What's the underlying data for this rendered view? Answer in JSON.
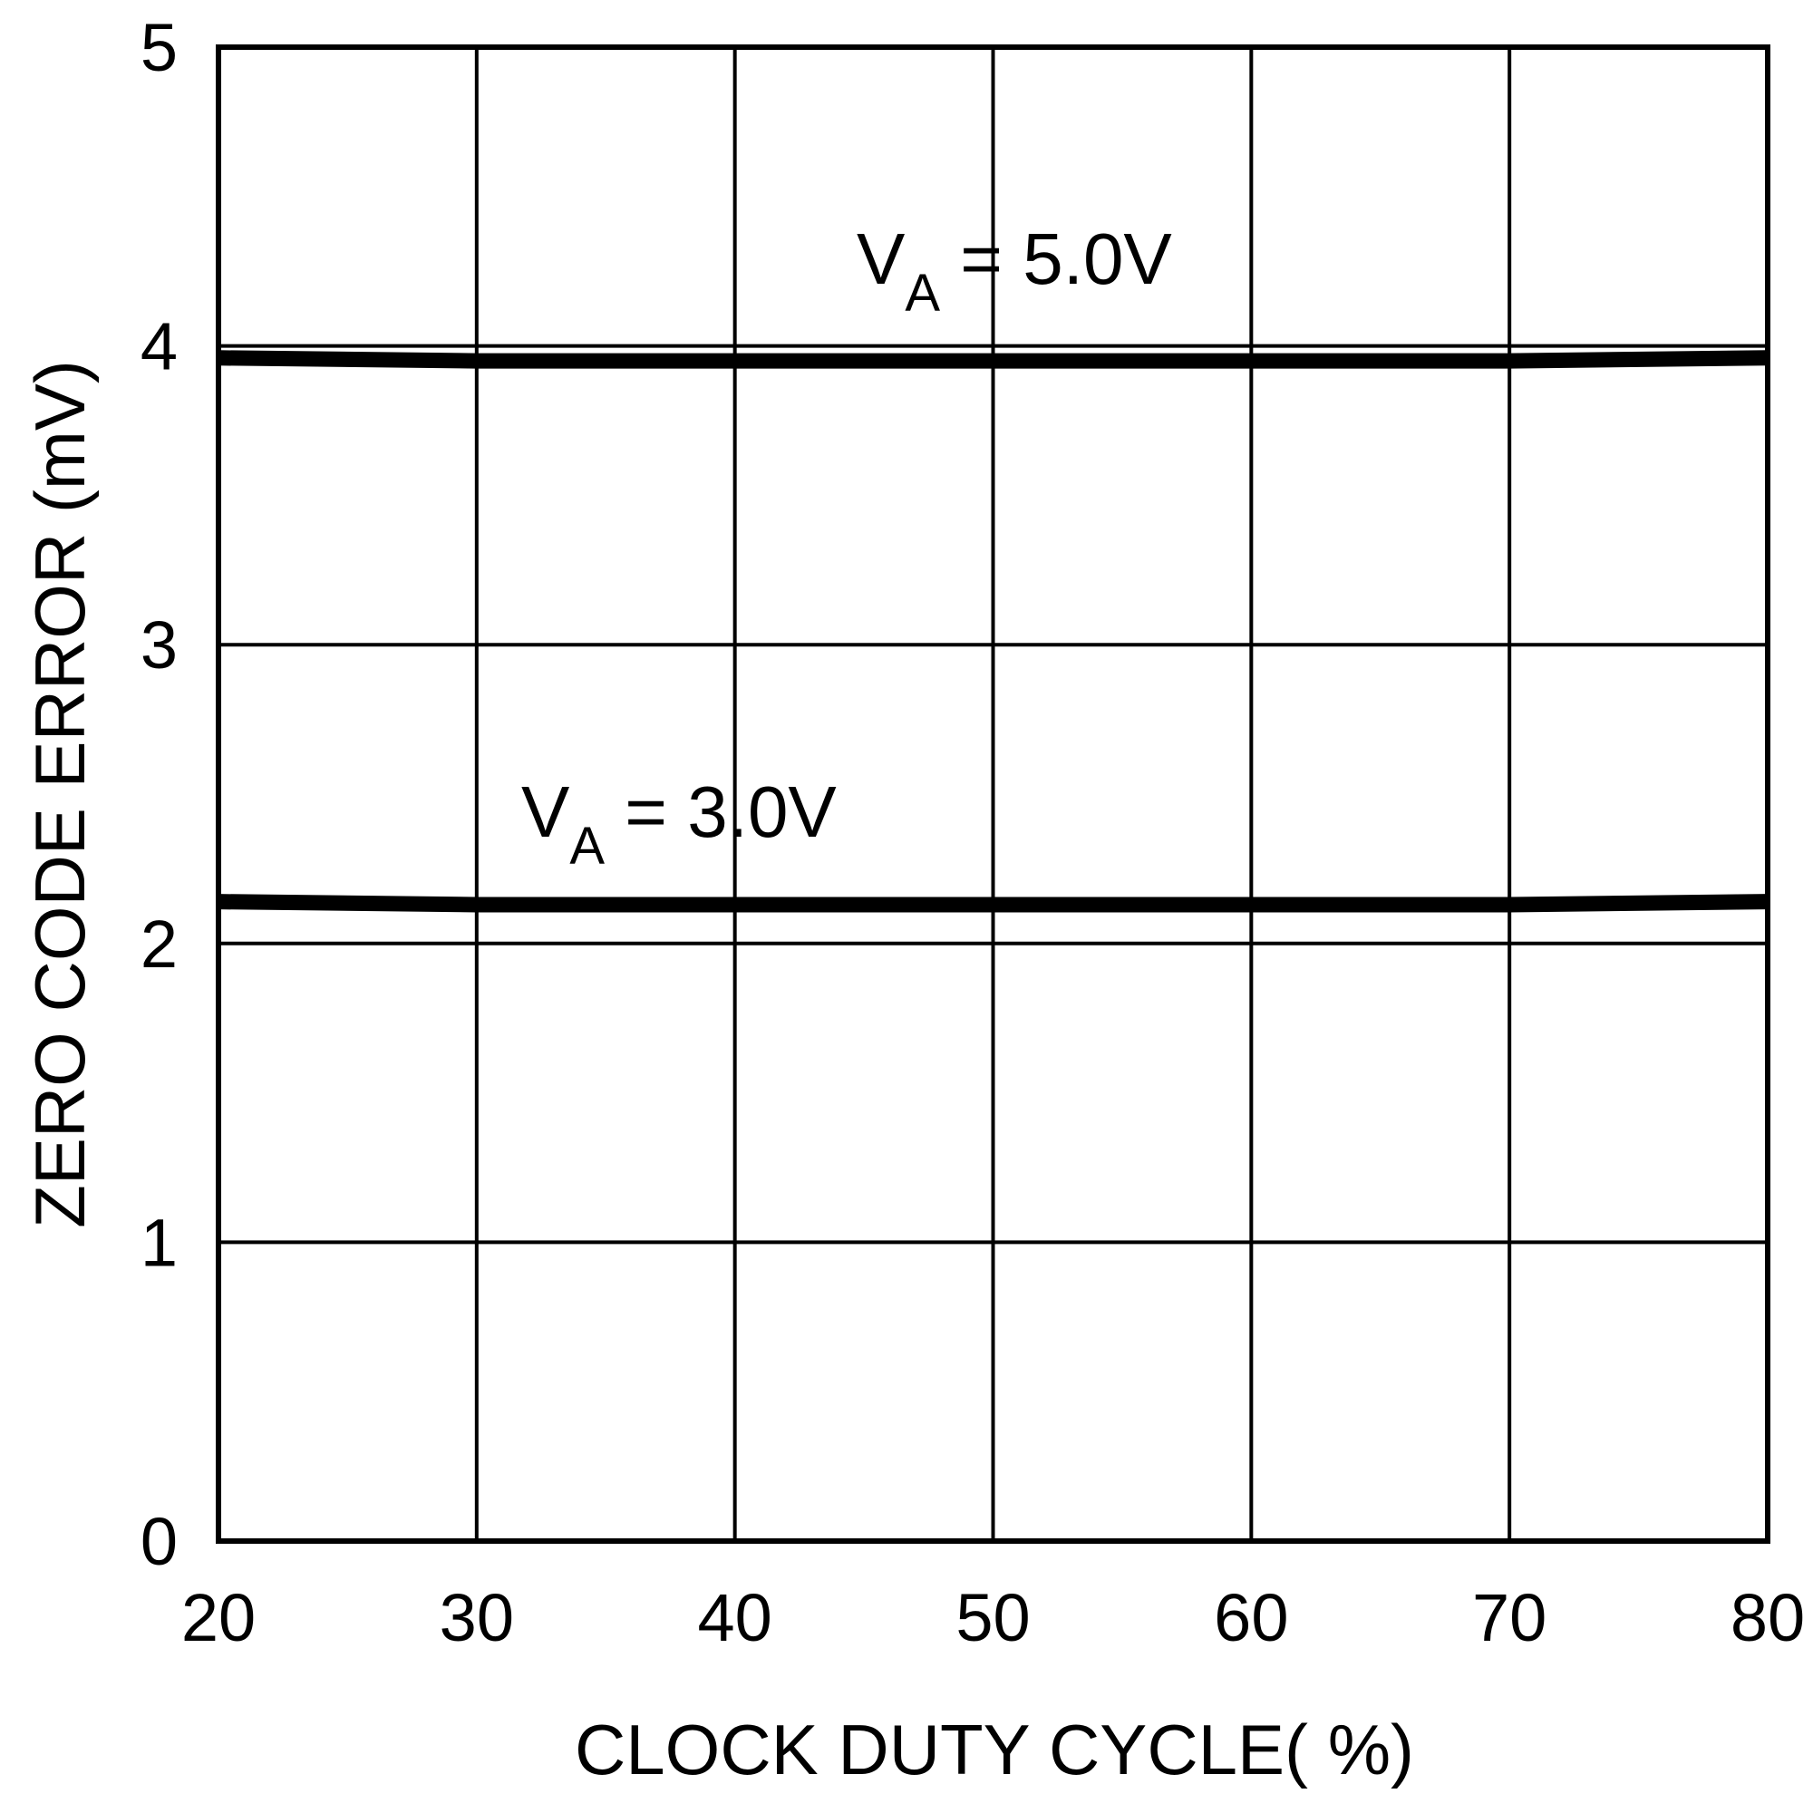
{
  "chart_data": {
    "type": "line",
    "title": "",
    "xlabel": "CLOCK DUTY CYCLE( %)",
    "ylabel": "ZERO CODE ERROR (mV)",
    "xlim": [
      20,
      80
    ],
    "ylim": [
      0,
      5
    ],
    "x_ticks": [
      "20",
      "30",
      "40",
      "50",
      "60",
      "70",
      "80"
    ],
    "y_ticks": [
      "0",
      "1",
      "2",
      "3",
      "4",
      "5"
    ],
    "grid": true,
    "legend": "none (inline annotations)",
    "x": [
      20,
      30,
      40,
      50,
      60,
      70,
      80
    ],
    "series": [
      {
        "name": "VA = 5.0V",
        "label_main": "V",
        "label_sub": "A",
        "label_rest": " = 5.0V",
        "values": [
          3.96,
          3.95,
          3.95,
          3.95,
          3.95,
          3.95,
          3.96
        ]
      },
      {
        "name": "VA = 3.0V",
        "label_main": "V",
        "label_sub": "A",
        "label_rest": " = 3.0V",
        "values": [
          2.14,
          2.13,
          2.13,
          2.13,
          2.13,
          2.13,
          2.14
        ]
      }
    ]
  }
}
